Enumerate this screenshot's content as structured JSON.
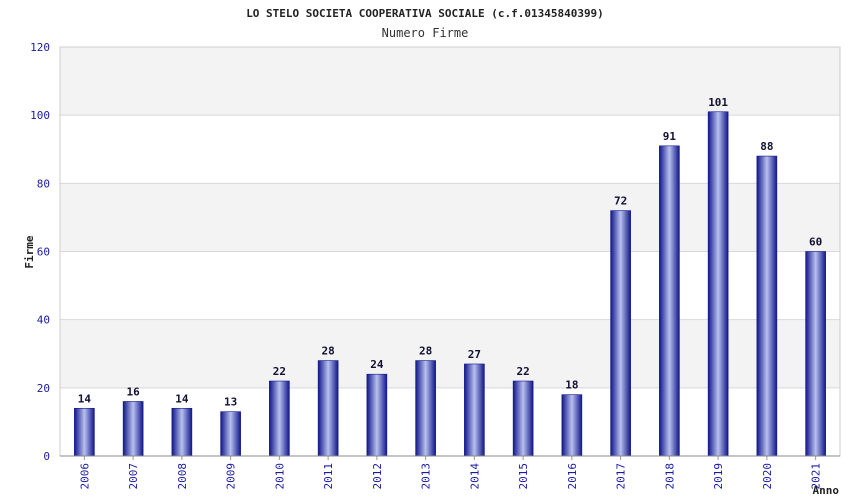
{
  "chart_data": {
    "type": "bar",
    "title": "LO STELO SOCIETA COOPERATIVA SOCIALE (c.f.01345840399)",
    "subtitle": "Numero Firme",
    "xlabel": "Anno",
    "ylabel": "Firme",
    "ylim": [
      0,
      120
    ],
    "yticks": [
      0,
      20,
      40,
      60,
      80,
      100,
      120
    ],
    "grid": true,
    "categories": [
      "2006",
      "2007",
      "2008",
      "2009",
      "2010",
      "2011",
      "2012",
      "2013",
      "2014",
      "2015",
      "2016",
      "2017",
      "2018",
      "2019",
      "2020",
      "2021"
    ],
    "values": [
      14,
      16,
      14,
      13,
      22,
      28,
      24,
      28,
      27,
      22,
      18,
      72,
      91,
      101,
      88,
      60
    ],
    "colors": {
      "bar_dark": "#10168a",
      "bar_light": "#b8c0ee",
      "band": "#f3f3f3",
      "grid": "#d8d8d8",
      "tick_text": "#1a1aa6"
    }
  }
}
